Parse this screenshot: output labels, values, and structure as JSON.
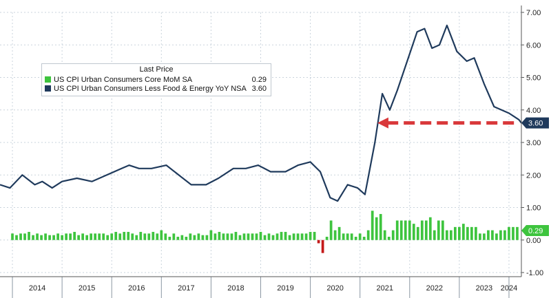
{
  "colors": {
    "line": "#1f3a5c",
    "bar_pos": "#3ec43e",
    "bar_neg": "#c41a1a",
    "arrow": "#d9383a",
    "green_tag": "#3ec43e",
    "navy_tag": "#1f3a5c"
  },
  "legend": {
    "title": "Last Price",
    "items": [
      {
        "label": "US CPI Urban Consumers Core MoM SA",
        "value": "0.29",
        "color": "#3ec43e"
      },
      {
        "label": "US CPI Urban Consumers Less Food & Energy YoY NSA",
        "value": "3.60",
        "color": "#1f3a5c"
      }
    ]
  },
  "value_tags": {
    "yoy": "3.60",
    "mom": "0.29"
  },
  "chart_data": {
    "type": "line",
    "title": "",
    "xlabel": "",
    "ylabel": "",
    "ylim": [
      -1,
      7
    ],
    "yticks": [
      "-1.00",
      "0.00",
      "1.00",
      "2.00",
      "3.00",
      "4.00",
      "5.00",
      "6.00",
      "7.00"
    ],
    "x_years": [
      "2014",
      "2015",
      "2016",
      "2017",
      "2018",
      "2019",
      "2020",
      "2021",
      "2022",
      "2023",
      "2024"
    ],
    "x_range": [
      2013.75,
      2024.25
    ],
    "grid": true,
    "legend_position": "top-left",
    "series": [
      {
        "name": "US CPI Urban Consumers Less Food & Energy YoY NSA",
        "kind": "line",
        "points": [
          [
            2013.75,
            1.7
          ],
          [
            2013.95,
            1.6
          ],
          [
            2014.2,
            2.0
          ],
          [
            2014.45,
            1.7
          ],
          [
            2014.6,
            1.8
          ],
          [
            2014.8,
            1.6
          ],
          [
            2015.0,
            1.8
          ],
          [
            2015.3,
            1.9
          ],
          [
            2015.6,
            1.8
          ],
          [
            2015.9,
            2.0
          ],
          [
            2016.2,
            2.2
          ],
          [
            2016.35,
            2.3
          ],
          [
            2016.55,
            2.2
          ],
          [
            2016.8,
            2.2
          ],
          [
            2017.1,
            2.3
          ],
          [
            2017.35,
            2.0
          ],
          [
            2017.6,
            1.7
          ],
          [
            2017.9,
            1.7
          ],
          [
            2018.15,
            1.9
          ],
          [
            2018.45,
            2.2
          ],
          [
            2018.7,
            2.2
          ],
          [
            2018.95,
            2.3
          ],
          [
            2019.2,
            2.1
          ],
          [
            2019.5,
            2.1
          ],
          [
            2019.75,
            2.3
          ],
          [
            2020.0,
            2.4
          ],
          [
            2020.2,
            2.1
          ],
          [
            2020.4,
            1.3
          ],
          [
            2020.55,
            1.2
          ],
          [
            2020.75,
            1.7
          ],
          [
            2020.95,
            1.6
          ],
          [
            2021.1,
            1.4
          ],
          [
            2021.3,
            3.0
          ],
          [
            2021.45,
            4.5
          ],
          [
            2021.6,
            4.0
          ],
          [
            2021.75,
            4.6
          ],
          [
            2021.95,
            5.5
          ],
          [
            2022.15,
            6.4
          ],
          [
            2022.3,
            6.5
          ],
          [
            2022.45,
            5.9
          ],
          [
            2022.6,
            6.0
          ],
          [
            2022.75,
            6.6
          ],
          [
            2022.95,
            5.8
          ],
          [
            2023.15,
            5.5
          ],
          [
            2023.3,
            5.6
          ],
          [
            2023.5,
            4.8
          ],
          [
            2023.7,
            4.1
          ],
          [
            2023.85,
            4.0
          ],
          [
            2024.0,
            3.9
          ],
          [
            2024.1,
            3.8
          ],
          [
            2024.2,
            3.7
          ],
          [
            2024.25,
            3.6
          ]
        ]
      },
      {
        "name": "US CPI Urban Consumers Core MoM SA",
        "kind": "bar",
        "start": 2014.0,
        "step": 0.08333,
        "values": [
          0.2,
          0.15,
          0.2,
          0.2,
          0.25,
          0.15,
          0.2,
          0.15,
          0.2,
          0.15,
          0.15,
          0.2,
          0.15,
          0.2,
          0.2,
          0.25,
          0.15,
          0.2,
          0.15,
          0.2,
          0.2,
          0.2,
          0.2,
          0.15,
          0.2,
          0.25,
          0.2,
          0.25,
          0.25,
          0.2,
          0.15,
          0.25,
          0.2,
          0.2,
          0.25,
          0.2,
          0.3,
          0.2,
          0.1,
          0.2,
          0.1,
          0.15,
          0.1,
          0.2,
          0.15,
          0.2,
          0.15,
          0.15,
          0.3,
          0.2,
          0.25,
          0.2,
          0.2,
          0.2,
          0.25,
          0.15,
          0.2,
          0.2,
          0.2,
          0.2,
          0.25,
          0.15,
          0.2,
          0.15,
          0.2,
          0.25,
          0.25,
          0.15,
          0.2,
          0.2,
          0.2,
          0.2,
          0.25,
          0.25,
          -0.1,
          -0.4,
          0.1,
          0.6,
          0.3,
          0.4,
          0.2,
          0.2,
          0.2,
          0.1,
          0.2,
          0.1,
          0.3,
          0.9,
          0.7,
          0.8,
          0.3,
          0.1,
          0.3,
          0.6,
          0.6,
          0.6,
          0.6,
          0.5,
          0.4,
          0.6,
          0.6,
          0.7,
          0.3,
          0.6,
          0.6,
          0.3,
          0.3,
          0.4,
          0.4,
          0.5,
          0.4,
          0.4,
          0.4,
          0.2,
          0.2,
          0.3,
          0.3,
          0.2,
          0.3,
          0.3,
          0.4,
          0.4,
          0.4,
          0.3
        ]
      }
    ],
    "annotations": [
      {
        "type": "dashed-arrow",
        "y": 3.6,
        "from_x": 2024.1,
        "to_x": 2021.35
      }
    ]
  }
}
